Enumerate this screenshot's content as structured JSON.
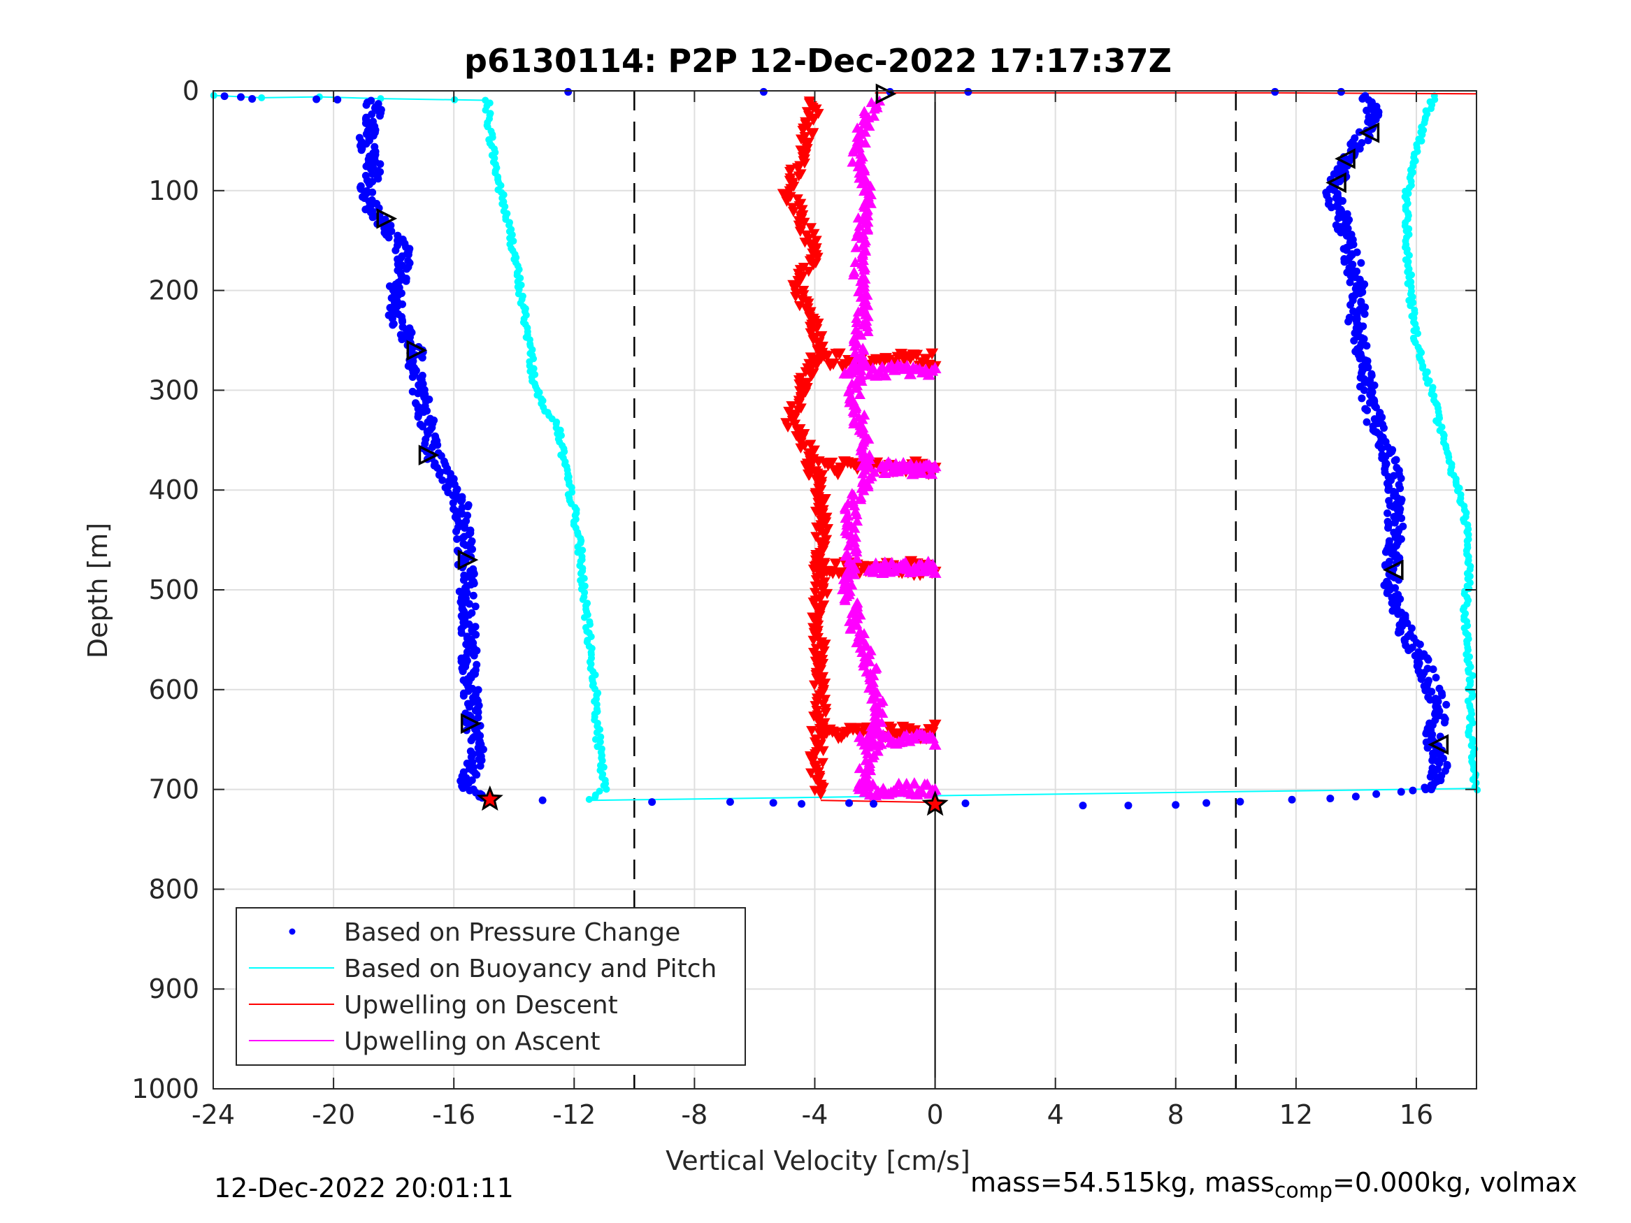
{
  "chart_data": {
    "type": "scatter",
    "title": "p6130114: P2P 12-Dec-2022 17:17:37Z",
    "xlabel": "Vertical Velocity [cm/s]",
    "ylabel": "Depth [m]",
    "xlim": [
      -24,
      18
    ],
    "ylim": [
      0,
      1000
    ],
    "y_reversed": true,
    "xticks": [
      -24,
      -20,
      -16,
      -12,
      -8,
      -4,
      0,
      4,
      8,
      12,
      16
    ],
    "yticks": [
      0,
      100,
      200,
      300,
      400,
      500,
      600,
      700,
      800,
      900,
      1000
    ],
    "grid": true,
    "legend_position": "bottom-left",
    "reference_lines": {
      "dashed_x": [
        -10,
        10
      ],
      "solid_x": [
        0
      ]
    },
    "colors": {
      "pressure": "#0000ff",
      "buoyancy": "#00ffff",
      "descent": "#ff0000",
      "ascent": "#ff00ff",
      "axis": "#262626",
      "grid": "#dfdfdf"
    },
    "series": [
      {
        "name": "Based on Pressure Change",
        "marker": "dot",
        "color": "#0000ff",
        "descent": [
          [
            -23.4,
            5
          ],
          [
            -22.5,
            8
          ],
          [
            -20.5,
            8
          ],
          [
            -18.8,
            10
          ],
          [
            -18.6,
            20
          ],
          [
            -18.9,
            50
          ],
          [
            -18.6,
            80
          ],
          [
            -19.0,
            100
          ],
          [
            -18.5,
            130
          ],
          [
            -17.8,
            150
          ],
          [
            -17.6,
            180
          ],
          [
            -18.0,
            200
          ],
          [
            -17.9,
            230
          ],
          [
            -17.3,
            260
          ],
          [
            -17.2,
            290
          ],
          [
            -16.9,
            330
          ],
          [
            -16.8,
            360
          ],
          [
            -16.2,
            390
          ],
          [
            -15.8,
            410
          ],
          [
            -15.7,
            440
          ],
          [
            -15.6,
            470
          ],
          [
            -15.5,
            520
          ],
          [
            -15.5,
            580
          ],
          [
            -15.4,
            630
          ],
          [
            -15.2,
            660
          ],
          [
            -15.6,
            700
          ],
          [
            -14.8,
            710
          ]
        ],
        "bottom": [
          [
            -13.0,
            711
          ],
          [
            -9.5,
            712
          ],
          [
            -6.8,
            712
          ],
          [
            -5.5,
            713
          ],
          [
            -4.5,
            714
          ],
          [
            -2.8,
            714
          ],
          [
            -2.0,
            714
          ],
          [
            0.0,
            714
          ],
          [
            1.0,
            714
          ],
          [
            5.0,
            716
          ],
          [
            6.5,
            716
          ],
          [
            8.0,
            715
          ],
          [
            10.0,
            712
          ],
          [
            12.0,
            710
          ],
          [
            14.0,
            707
          ],
          [
            15.5,
            703
          ],
          [
            16.5,
            700
          ]
        ],
        "ascent": [
          [
            16.5,
            700
          ],
          [
            16.8,
            680
          ],
          [
            16.5,
            650
          ],
          [
            16.8,
            620
          ],
          [
            16.3,
            580
          ],
          [
            15.6,
            540
          ],
          [
            15.2,
            500
          ],
          [
            15.2,
            470
          ],
          [
            15.3,
            430
          ],
          [
            15.3,
            390
          ],
          [
            15.0,
            360
          ],
          [
            14.6,
            330
          ],
          [
            14.4,
            300
          ],
          [
            14.2,
            260
          ],
          [
            14.0,
            230
          ],
          [
            14.1,
            200
          ],
          [
            13.8,
            160
          ],
          [
            13.4,
            120
          ],
          [
            13.2,
            100
          ],
          [
            13.5,
            80
          ],
          [
            13.9,
            60
          ],
          [
            14.4,
            40
          ],
          [
            14.6,
            20
          ],
          [
            14.3,
            5
          ]
        ],
        "surface_outliers": [
          [
            -12.2,
            1
          ],
          [
            -5.7,
            1
          ],
          [
            -1.5,
            1
          ],
          [
            1.1,
            1
          ],
          [
            11.3,
            1
          ],
          [
            13.5,
            1
          ]
        ]
      },
      {
        "name": "Based on Buoyancy and Pitch",
        "marker": "line+circle",
        "color": "#00ffff",
        "descent": [
          [
            -24.0,
            5
          ],
          [
            -22.4,
            6
          ],
          [
            -20.5,
            6
          ],
          [
            -18.5,
            7
          ],
          [
            -15.9,
            8
          ],
          [
            -14.9,
            10
          ],
          [
            -14.8,
            40
          ],
          [
            -14.6,
            80
          ],
          [
            -14.3,
            120
          ],
          [
            -14.0,
            160
          ],
          [
            -13.8,
            200
          ],
          [
            -13.5,
            250
          ],
          [
            -13.3,
            300
          ],
          [
            -12.9,
            320
          ],
          [
            -12.5,
            340
          ],
          [
            -12.3,
            380
          ],
          [
            -12.0,
            420
          ],
          [
            -11.8,
            460
          ],
          [
            -11.7,
            500
          ],
          [
            -11.5,
            550
          ],
          [
            -11.3,
            600
          ],
          [
            -11.2,
            650
          ],
          [
            -11.0,
            700
          ],
          [
            -11.5,
            710
          ]
        ],
        "ascent": [
          [
            18.0,
            700
          ],
          [
            17.8,
            640
          ],
          [
            17.8,
            580
          ],
          [
            17.6,
            520
          ],
          [
            17.8,
            480
          ],
          [
            17.6,
            420
          ],
          [
            17.2,
            380
          ],
          [
            16.8,
            340
          ],
          [
            16.5,
            300
          ],
          [
            16.0,
            250
          ],
          [
            15.8,
            200
          ],
          [
            15.7,
            150
          ],
          [
            15.7,
            100
          ],
          [
            16.0,
            60
          ],
          [
            16.4,
            20
          ],
          [
            16.6,
            5
          ]
        ]
      },
      {
        "name": "Upwelling on Descent",
        "marker": "triangle-down",
        "color": "#ff0000",
        "points": [
          [
            -4.0,
            10
          ],
          [
            -4.2,
            40
          ],
          [
            -4.5,
            70
          ],
          [
            -4.9,
            100
          ],
          [
            -4.4,
            130
          ],
          [
            -4.0,
            160
          ],
          [
            -4.6,
            200
          ],
          [
            -4.0,
            230
          ],
          [
            -3.8,
            260
          ],
          [
            -4.5,
            300
          ],
          [
            -4.8,
            330
          ],
          [
            -4.2,
            360
          ],
          [
            -3.9,
            400
          ],
          [
            -3.7,
            430
          ],
          [
            -3.9,
            460
          ],
          [
            -3.8,
            500
          ],
          [
            -3.9,
            540
          ],
          [
            -3.8,
            580
          ],
          [
            -3.8,
            610
          ],
          [
            -3.9,
            650
          ],
          [
            -4.0,
            690
          ],
          [
            -3.8,
            705
          ]
        ],
        "spikes": [
          [
            -4.0,
            270
          ],
          [
            -4.2,
            378
          ],
          [
            -3.9,
            478
          ],
          [
            -3.8,
            642
          ]
        ],
        "surface": [
          [
            -2.0,
            2
          ],
          [
            11.5,
            2
          ],
          [
            18.0,
            3
          ]
        ]
      },
      {
        "name": "Upwelling on Ascent",
        "marker": "triangle-up",
        "color": "#ff00ff",
        "points": [
          [
            -2.0,
            10
          ],
          [
            -2.4,
            40
          ],
          [
            -2.6,
            70
          ],
          [
            -2.3,
            100
          ],
          [
            -2.4,
            140
          ],
          [
            -2.5,
            180
          ],
          [
            -2.4,
            220
          ],
          [
            -2.5,
            260
          ],
          [
            -2.7,
            300
          ],
          [
            -2.5,
            340
          ],
          [
            -2.2,
            380
          ],
          [
            -2.8,
            420
          ],
          [
            -2.8,
            460
          ],
          [
            -2.9,
            500
          ],
          [
            -2.6,
            540
          ],
          [
            -2.1,
            580
          ],
          [
            -1.9,
            620
          ],
          [
            -2.1,
            660
          ],
          [
            -2.5,
            700
          ]
        ],
        "spikes": [
          [
            -3.0,
            280
          ],
          [
            -1.8,
            378
          ],
          [
            -2.2,
            478
          ],
          [
            -2.5,
            650
          ],
          [
            -2.5,
            700
          ]
        ]
      }
    ],
    "markers": {
      "right_triangles": [
        [
          -1.7,
          3
        ],
        [
          -18.3,
          128
        ],
        [
          -17.3,
          260
        ],
        [
          -16.9,
          365
        ],
        [
          -15.6,
          470
        ],
        [
          -15.5,
          634
        ]
      ],
      "left_triangles": [
        [
          14.5,
          42
        ],
        [
          13.7,
          68
        ],
        [
          13.4,
          92
        ],
        [
          15.3,
          480
        ],
        [
          16.8,
          655
        ]
      ],
      "stars": [
        [
          -14.8,
          710
        ],
        [
          0.0,
          715
        ]
      ]
    },
    "legend": [
      "Based on Pressure Change",
      "Based on Buoyancy and Pitch",
      "Upwelling on Descent",
      "Upwelling on Ascent"
    ]
  },
  "footer": {
    "left": "12-Dec-2022 20:01:11",
    "right_part1": "mass=54.515kg, mass",
    "right_sub": "comp",
    "right_part2": "=0.000kg, volmax"
  }
}
